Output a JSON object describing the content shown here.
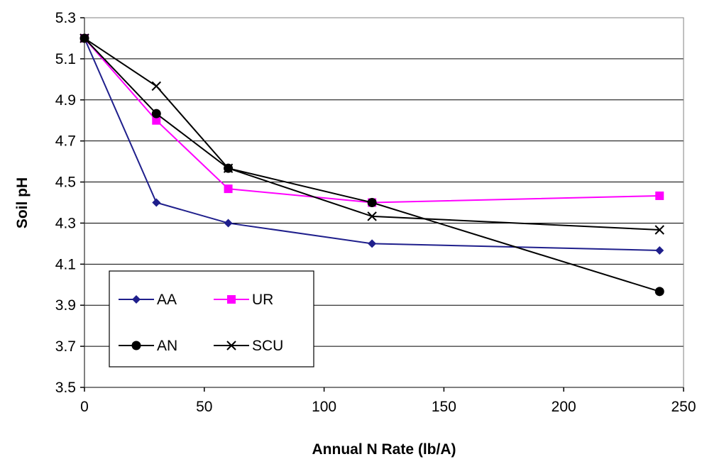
{
  "chart_data": {
    "type": "line",
    "title": "",
    "xlabel": "Annual N Rate (lb/A)",
    "ylabel": "Soil pH",
    "xlim": [
      0,
      250
    ],
    "ylim": [
      3.5,
      5.3
    ],
    "x_ticks": [
      "0",
      "50",
      "100",
      "150",
      "200",
      "250"
    ],
    "y_ticks": [
      "3.5",
      "3.7",
      "3.9",
      "4.1",
      "4.3",
      "4.5",
      "4.7",
      "4.9",
      "5.1",
      "5.3"
    ],
    "grid": "horizontal",
    "legend_position": "bottom-left",
    "series": [
      {
        "name": "AA",
        "color": "#1f1f8c",
        "marker": "diamond",
        "x": [
          0,
          30,
          60,
          120,
          240
        ],
        "y": [
          5.2,
          4.4,
          4.3,
          4.2,
          4.167
        ]
      },
      {
        "name": "UR",
        "color": "#ff00ff",
        "marker": "square",
        "x": [
          0,
          30,
          60,
          120,
          240
        ],
        "y": [
          5.2,
          4.8,
          4.467,
          4.4,
          4.433
        ]
      },
      {
        "name": "AN",
        "color": "#000000",
        "marker": "circle",
        "x": [
          0,
          30,
          60,
          120,
          240
        ],
        "y": [
          5.2,
          4.833,
          4.567,
          4.4,
          3.967
        ]
      },
      {
        "name": "SCU",
        "color": "#000000",
        "marker": "x",
        "x": [
          0,
          30,
          60,
          120,
          240
        ],
        "y": [
          5.2,
          4.967,
          4.567,
          4.333,
          4.267
        ]
      }
    ]
  }
}
